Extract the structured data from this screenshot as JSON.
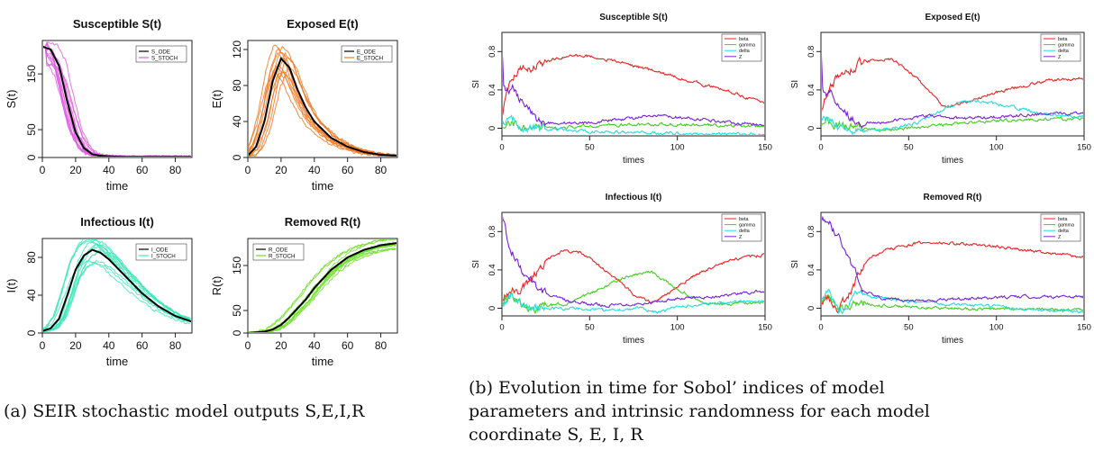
{
  "captions": {
    "a": "(a) SEIR stochastic model outputs S,E,I,R",
    "b": "(b) Evolution in time for Sobol’ indices of model parameters and intrinsic randomness for each model coordinate S, E, I, R"
  },
  "chart_data": [
    {
      "id": "a1",
      "type": "line",
      "title": "Susceptible S(t)",
      "xlabel": "time",
      "ylabel": "S(t)",
      "xlim": [
        0,
        90
      ],
      "ylim": [
        0,
        210
      ],
      "xticks": [
        0,
        20,
        40,
        60,
        80
      ],
      "yticks": [
        0,
        50,
        150
      ],
      "legend": [
        "S_ODE",
        "S_STOCH"
      ],
      "legend_position": "top-right",
      "colors": {
        "ode": "#000000",
        "stoch": "#e25ce2"
      },
      "series": [
        {
          "name": "S_ODE",
          "x": [
            0,
            5,
            10,
            15,
            20,
            25,
            30,
            35,
            40,
            50,
            60,
            70,
            80,
            90
          ],
          "y": [
            199,
            194,
            165,
            100,
            45,
            17,
            6,
            3,
            2,
            1,
            1,
            1,
            1,
            1
          ]
        },
        {
          "name": "S_STOCH",
          "ensemble": 12,
          "spread": 0.18
        }
      ]
    },
    {
      "id": "a2",
      "type": "line",
      "title": "Exposed E(t)",
      "xlabel": "time",
      "ylabel": "E(t)",
      "xlim": [
        0,
        90
      ],
      "ylim": [
        0,
        130
      ],
      "xticks": [
        0,
        20,
        40,
        60,
        80
      ],
      "yticks": [
        0,
        40,
        80,
        120
      ],
      "legend": [
        "E_ODE",
        "E_STOCH"
      ],
      "legend_position": "top-right",
      "colors": {
        "ode": "#000000",
        "stoch": "#f07820"
      },
      "series": [
        {
          "name": "E_ODE",
          "x": [
            0,
            5,
            10,
            15,
            20,
            25,
            30,
            35,
            40,
            50,
            60,
            70,
            80,
            90
          ],
          "y": [
            2,
            12,
            40,
            85,
            110,
            100,
            75,
            55,
            40,
            22,
            12,
            6,
            3,
            2
          ]
        },
        {
          "name": "E_STOCH",
          "ensemble": 12,
          "spread": 0.15
        }
      ]
    },
    {
      "id": "a3",
      "type": "line",
      "title": "Infectious I(t)",
      "xlabel": "time",
      "ylabel": "I(t)",
      "xlim": [
        0,
        90
      ],
      "ylim": [
        0,
        100
      ],
      "xticks": [
        0,
        20,
        40,
        60,
        80
      ],
      "yticks": [
        0,
        40,
        80
      ],
      "legend": [
        "I_ODE",
        "I_STOCH"
      ],
      "legend_position": "top-right",
      "colors": {
        "ode": "#000000",
        "stoch": "#3ee8b8"
      },
      "series": [
        {
          "name": "I_ODE",
          "x": [
            0,
            5,
            10,
            15,
            20,
            25,
            30,
            35,
            40,
            50,
            60,
            70,
            80,
            90
          ],
          "y": [
            2,
            5,
            15,
            40,
            67,
            82,
            88,
            85,
            78,
            60,
            42,
            28,
            18,
            12
          ]
        },
        {
          "name": "I_STOCH",
          "ensemble": 12,
          "spread": 0.16
        }
      ]
    },
    {
      "id": "a4",
      "type": "line",
      "title": "Removed R(t)",
      "xlabel": "time",
      "ylabel": "R(t)",
      "xlim": [
        0,
        90
      ],
      "ylim": [
        0,
        210
      ],
      "xticks": [
        0,
        20,
        40,
        60,
        80
      ],
      "yticks": [
        0,
        50,
        150
      ],
      "legend": [
        "R_ODE",
        "R_STOCH"
      ],
      "legend_position": "top-left",
      "colors": {
        "ode": "#000000",
        "stoch": "#6ee02a"
      },
      "series": [
        {
          "name": "R_ODE",
          "x": [
            0,
            10,
            15,
            20,
            25,
            30,
            35,
            40,
            50,
            60,
            70,
            80,
            90
          ],
          "y": [
            0,
            3,
            8,
            18,
            35,
            55,
            75,
            100,
            140,
            168,
            185,
            195,
            200
          ]
        },
        {
          "name": "R_STOCH",
          "ensemble": 12,
          "spread": 0.07
        }
      ]
    },
    {
      "id": "b1",
      "type": "line",
      "title": "Susceptible S(t)",
      "xlabel": "times",
      "ylabel": "SI",
      "xlim": [
        0,
        150
      ],
      "ylim": [
        -0.08,
        1.0
      ],
      "xticks": [
        0,
        50,
        100,
        150
      ],
      "yticks": [
        0.0,
        0.4,
        0.8
      ],
      "legend": [
        "beta",
        "gamma",
        "delta",
        "Z"
      ],
      "legend_position": "top-right",
      "series": [
        {
          "name": "beta",
          "color": "#ee2222",
          "x": [
            0,
            2,
            5,
            10,
            20,
            30,
            40,
            50,
            70,
            90,
            110,
            130,
            150
          ],
          "y": [
            0.12,
            0.3,
            0.5,
            0.6,
            0.65,
            0.72,
            0.76,
            0.75,
            0.68,
            0.58,
            0.48,
            0.38,
            0.26
          ]
        },
        {
          "name": "gamma",
          "color": "#44cc22",
          "x": [
            0,
            3,
            8,
            15,
            30,
            60,
            90,
            120,
            150
          ],
          "y": [
            0.0,
            0.07,
            0.04,
            0.0,
            0.0,
            0.03,
            0.04,
            0.03,
            0.02
          ]
        },
        {
          "name": "delta",
          "color": "#22dddd",
          "x": [
            0,
            3,
            8,
            15,
            30,
            60,
            90,
            120,
            150
          ],
          "y": [
            0.05,
            0.1,
            0.06,
            0.0,
            -0.02,
            -0.04,
            -0.05,
            -0.06,
            -0.06
          ]
        },
        {
          "name": "Z",
          "color": "#7722dd",
          "x": [
            0,
            1,
            3,
            6,
            10,
            20,
            30,
            50,
            70,
            90,
            110,
            130,
            150
          ],
          "y": [
            0.85,
            0.45,
            0.38,
            0.42,
            0.3,
            0.08,
            0.05,
            0.06,
            0.1,
            0.13,
            0.1,
            0.06,
            0.04
          ]
        }
      ]
    },
    {
      "id": "b2",
      "type": "line",
      "title": "Exposed E(t)",
      "xlabel": "times",
      "ylabel": "SI",
      "xlim": [
        0,
        150
      ],
      "ylim": [
        -0.08,
        1.0
      ],
      "xticks": [
        0,
        50,
        100,
        150
      ],
      "yticks": [
        0.0,
        0.4,
        0.8
      ],
      "legend": [
        "beta",
        "gamma",
        "delta",
        "Z"
      ],
      "legend_position": "top-right",
      "series": [
        {
          "name": "beta",
          "color": "#ee2222",
          "x": [
            0,
            3,
            8,
            15,
            25,
            35,
            40,
            50,
            60,
            70,
            80,
            95,
            110,
            130,
            150
          ],
          "y": [
            0.15,
            0.35,
            0.5,
            0.6,
            0.7,
            0.72,
            0.72,
            0.6,
            0.42,
            0.22,
            0.25,
            0.35,
            0.42,
            0.5,
            0.52
          ]
        },
        {
          "name": "gamma",
          "color": "#44cc22",
          "x": [
            0,
            3,
            8,
            20,
            40,
            60,
            80,
            100,
            120,
            150
          ],
          "y": [
            0.02,
            0.1,
            0.05,
            0.0,
            -0.02,
            0.02,
            0.05,
            0.08,
            0.09,
            0.1
          ]
        },
        {
          "name": "delta",
          "color": "#22dddd",
          "x": [
            0,
            3,
            8,
            20,
            40,
            55,
            70,
            80,
            90,
            110,
            130,
            150
          ],
          "y": [
            0.05,
            0.08,
            0.04,
            -0.03,
            0.0,
            0.06,
            0.2,
            0.27,
            0.28,
            0.22,
            0.14,
            0.12
          ]
        },
        {
          "name": "Z",
          "color": "#7722dd",
          "x": [
            0,
            1,
            3,
            6,
            10,
            20,
            30,
            50,
            60,
            80,
            100,
            120,
            150
          ],
          "y": [
            0.88,
            0.45,
            0.35,
            0.38,
            0.25,
            0.07,
            0.05,
            0.1,
            0.13,
            0.1,
            0.12,
            0.14,
            0.16
          ]
        }
      ]
    },
    {
      "id": "b3",
      "type": "line",
      "title": "Infectious I(t)",
      "xlabel": "times",
      "ylabel": "SI",
      "xlim": [
        0,
        150
      ],
      "ylim": [
        -0.08,
        1.0
      ],
      "xticks": [
        0,
        50,
        100,
        150
      ],
      "yticks": [
        0.0,
        0.4,
        0.8
      ],
      "legend": [
        "beta",
        "gamma",
        "delta",
        "Z"
      ],
      "legend_position": "top-right",
      "series": [
        {
          "name": "beta",
          "color": "#ee2222",
          "x": [
            0,
            5,
            10,
            15,
            25,
            35,
            45,
            60,
            75,
            85,
            95,
            110,
            130,
            150
          ],
          "y": [
            0.1,
            0.2,
            0.18,
            0.28,
            0.5,
            0.6,
            0.58,
            0.38,
            0.15,
            0.06,
            0.15,
            0.35,
            0.5,
            0.56
          ]
        },
        {
          "name": "gamma",
          "color": "#44cc22",
          "x": [
            0,
            5,
            10,
            15,
            25,
            40,
            55,
            70,
            85,
            100,
            115,
            130,
            150
          ],
          "y": [
            0.05,
            0.15,
            0.05,
            -0.02,
            0.02,
            0.06,
            0.2,
            0.32,
            0.38,
            0.2,
            0.05,
            0.04,
            0.06
          ]
        },
        {
          "name": "delta",
          "color": "#22dddd",
          "x": [
            0,
            5,
            10,
            20,
            40,
            60,
            80,
            90,
            100,
            120,
            150
          ],
          "y": [
            0.05,
            0.12,
            0.06,
            0.0,
            0.0,
            -0.02,
            0.0,
            -0.05,
            0.02,
            0.05,
            0.08
          ]
        },
        {
          "name": "Z",
          "color": "#7722dd",
          "x": [
            0,
            3,
            6,
            10,
            15,
            25,
            40,
            60,
            80,
            100,
            120,
            135,
            150
          ],
          "y": [
            0.98,
            0.75,
            0.6,
            0.45,
            0.3,
            0.15,
            0.06,
            0.03,
            0.05,
            0.1,
            0.12,
            0.15,
            0.18
          ]
        }
      ]
    },
    {
      "id": "b4",
      "type": "line",
      "title": "Removed R(t)",
      "xlabel": "times",
      "ylabel": "SI",
      "xlim": [
        0,
        150
      ],
      "ylim": [
        -0.08,
        1.0
      ],
      "xticks": [
        0,
        50,
        100,
        150
      ],
      "yticks": [
        0.0,
        0.4,
        0.8
      ],
      "legend": [
        "beta",
        "gamma",
        "delta",
        "Z"
      ],
      "legend_position": "top-right",
      "series": [
        {
          "name": "beta",
          "color": "#ee2222",
          "x": [
            0,
            5,
            10,
            15,
            20,
            25,
            30,
            40,
            55,
            70,
            90,
            110,
            130,
            150
          ],
          "y": [
            0.05,
            0.1,
            0.0,
            0.1,
            0.3,
            0.45,
            0.55,
            0.62,
            0.68,
            0.68,
            0.66,
            0.62,
            0.58,
            0.53
          ]
        },
        {
          "name": "gamma",
          "color": "#44cc22",
          "x": [
            0,
            5,
            10,
            15,
            25,
            40,
            70,
            100,
            130,
            150
          ],
          "y": [
            0.05,
            0.12,
            -0.05,
            0.05,
            0.05,
            0.02,
            0.0,
            -0.01,
            -0.01,
            -0.02
          ]
        },
        {
          "name": "delta",
          "color": "#22dddd",
          "x": [
            0,
            5,
            10,
            15,
            20,
            30,
            50,
            80,
            110,
            150
          ],
          "y": [
            0.1,
            0.15,
            -0.05,
            0.05,
            0.18,
            0.12,
            0.06,
            0.04,
            0.0,
            -0.04
          ]
        },
        {
          "name": "Z",
          "color": "#7722dd",
          "x": [
            0,
            3,
            6,
            10,
            15,
            20,
            25,
            35,
            50,
            70,
            90,
            110,
            130,
            150
          ],
          "y": [
            0.95,
            0.9,
            0.85,
            0.75,
            0.55,
            0.35,
            0.18,
            0.1,
            0.08,
            0.09,
            0.1,
            0.12,
            0.12,
            0.12
          ]
        }
      ]
    }
  ]
}
